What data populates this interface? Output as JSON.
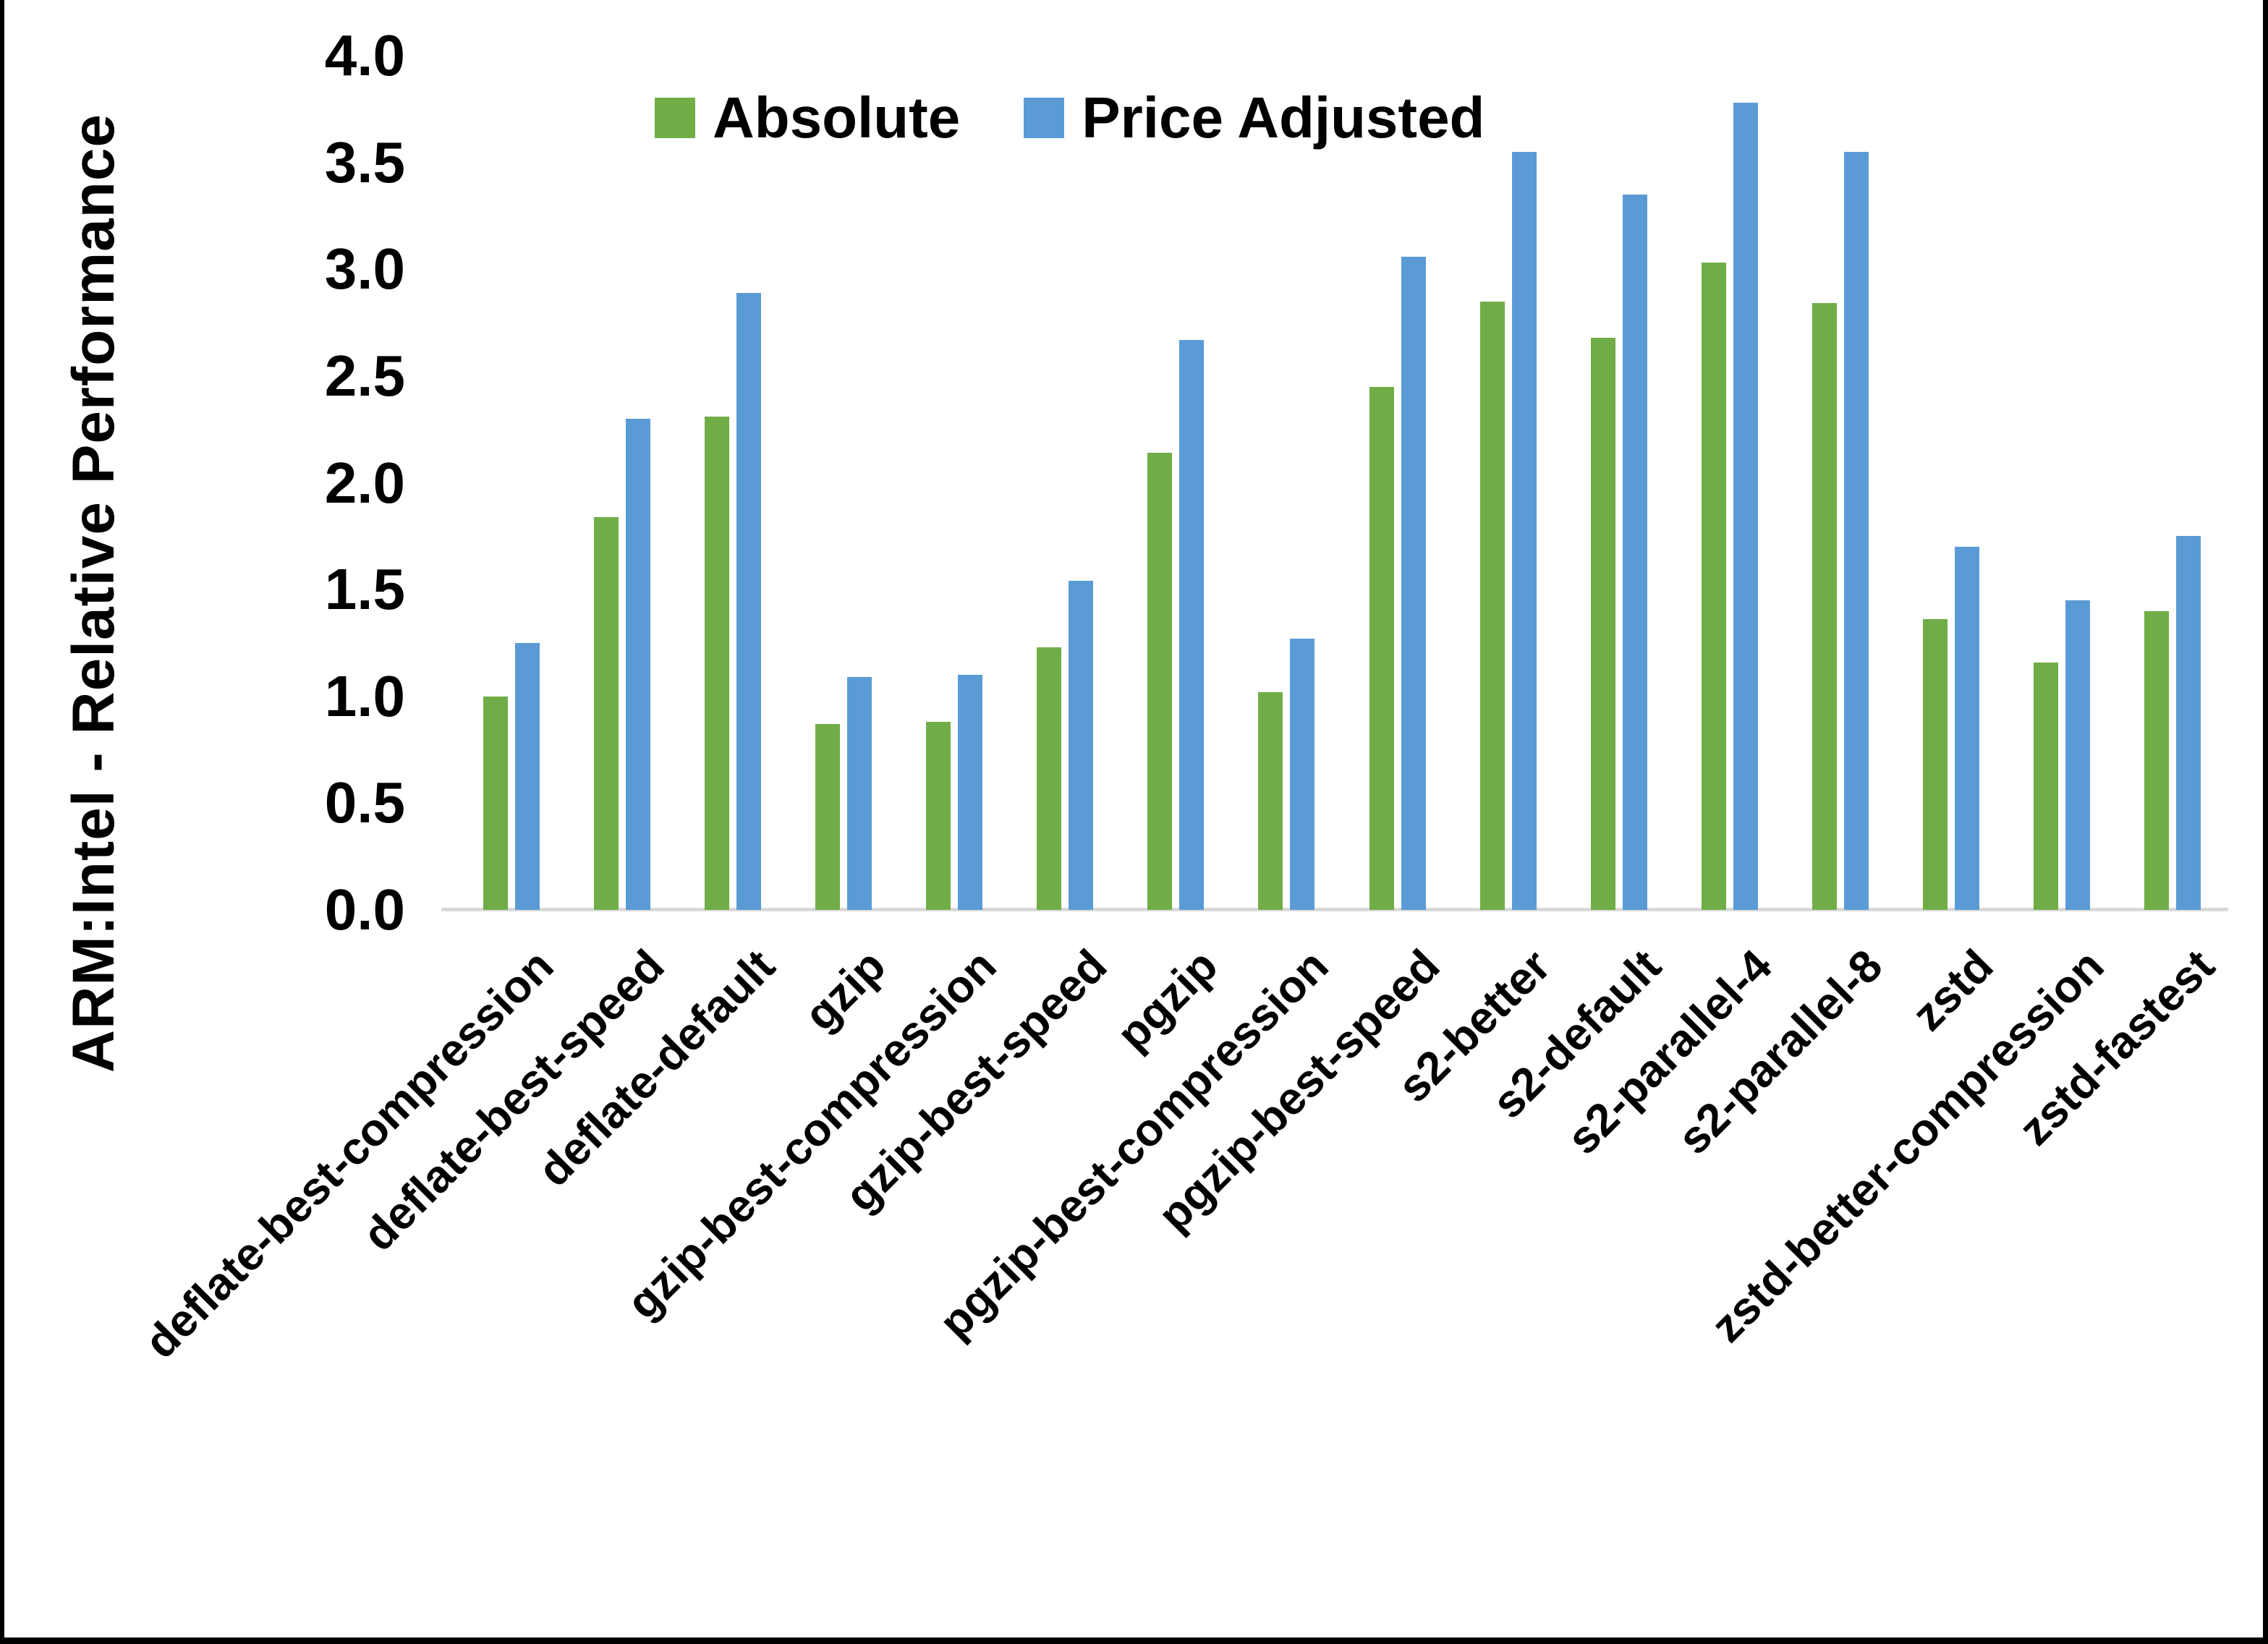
{
  "chart_data": {
    "type": "bar",
    "title": "",
    "ylabel": "ARM:Intel - Relative Performance",
    "xlabel": "",
    "ylim": [
      0.0,
      4.0
    ],
    "ytick_step": 0.5,
    "yticks": [
      "0.0",
      "0.5",
      "1.0",
      "1.5",
      "2.0",
      "2.5",
      "3.0",
      "3.5",
      "4.0"
    ],
    "grid": false,
    "legend_position": "top-center",
    "axis_line_color": "#d9d9d9",
    "text_color": "#000000",
    "categories": [
      "deflate-best-compression",
      "deflate-best-speed",
      "deflate-default",
      "gzip",
      "gzip-best-compression",
      "gzip-best-speed",
      "pgzip",
      "pgzip-best-compression",
      "pgzip-best-speed",
      "s2-better",
      "s2-default",
      "s2-parallel-4",
      "s2-parallel-8",
      "zstd",
      "zstd-better-compression",
      "zstd-fastest"
    ],
    "series": [
      {
        "name": "Absolute",
        "color": "#70ad47",
        "values": [
          1.0,
          1.84,
          2.31,
          0.87,
          0.88,
          1.23,
          2.14,
          1.02,
          2.45,
          2.85,
          2.68,
          3.03,
          2.84,
          1.36,
          1.16,
          1.4
        ]
      },
      {
        "name": "Price Adjusted",
        "color": "#5b9bd5",
        "values": [
          1.25,
          2.3,
          2.89,
          1.09,
          1.1,
          1.54,
          2.67,
          1.27,
          3.06,
          3.55,
          3.35,
          3.78,
          3.55,
          1.7,
          1.45,
          1.75
        ]
      }
    ]
  }
}
